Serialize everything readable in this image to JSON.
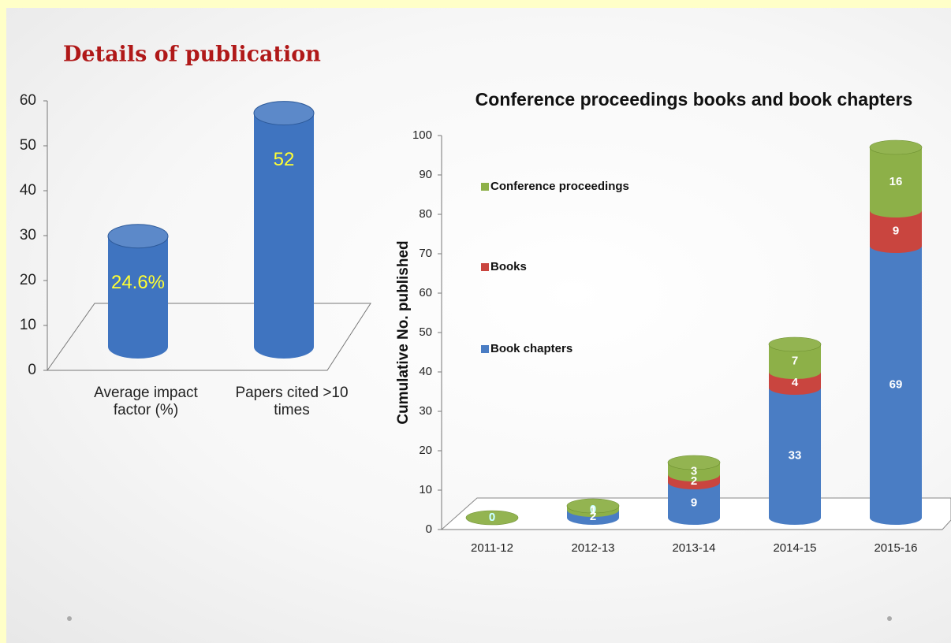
{
  "title": "Details of publication",
  "chart_data": [
    {
      "type": "bar",
      "categories": [
        "Average impact factor (%)",
        "Papers cited >10 times"
      ],
      "values": [
        24.6,
        52
      ],
      "value_labels": [
        "24.6%",
        "52"
      ],
      "color": "#3f74c0",
      "ylim": [
        0,
        60
      ],
      "yticks": [
        0,
        10,
        20,
        30,
        40,
        50,
        60
      ]
    },
    {
      "type": "stacked_bar",
      "title": "Conference proceedings books and book chapters",
      "y_label": "Cumulative No. published",
      "categories": [
        "2011-12",
        "2012-13",
        "2013-14",
        "2014-15",
        "2015-16"
      ],
      "series": [
        {
          "name": "Book chapters",
          "color": "#4a7dc4",
          "values": [
            0,
            2,
            9,
            33,
            69
          ]
        },
        {
          "name": "Books",
          "color": "#c9453f",
          "values": [
            0,
            0,
            2,
            4,
            9
          ]
        },
        {
          "name": "Conference proceedings",
          "color": "#8db048",
          "values": [
            0,
            1,
            3,
            7,
            16
          ]
        }
      ],
      "ylim": [
        0,
        100
      ],
      "yticks": [
        0,
        10,
        20,
        30,
        40,
        50,
        60,
        70,
        80,
        90,
        100
      ],
      "legend": "left"
    }
  ]
}
